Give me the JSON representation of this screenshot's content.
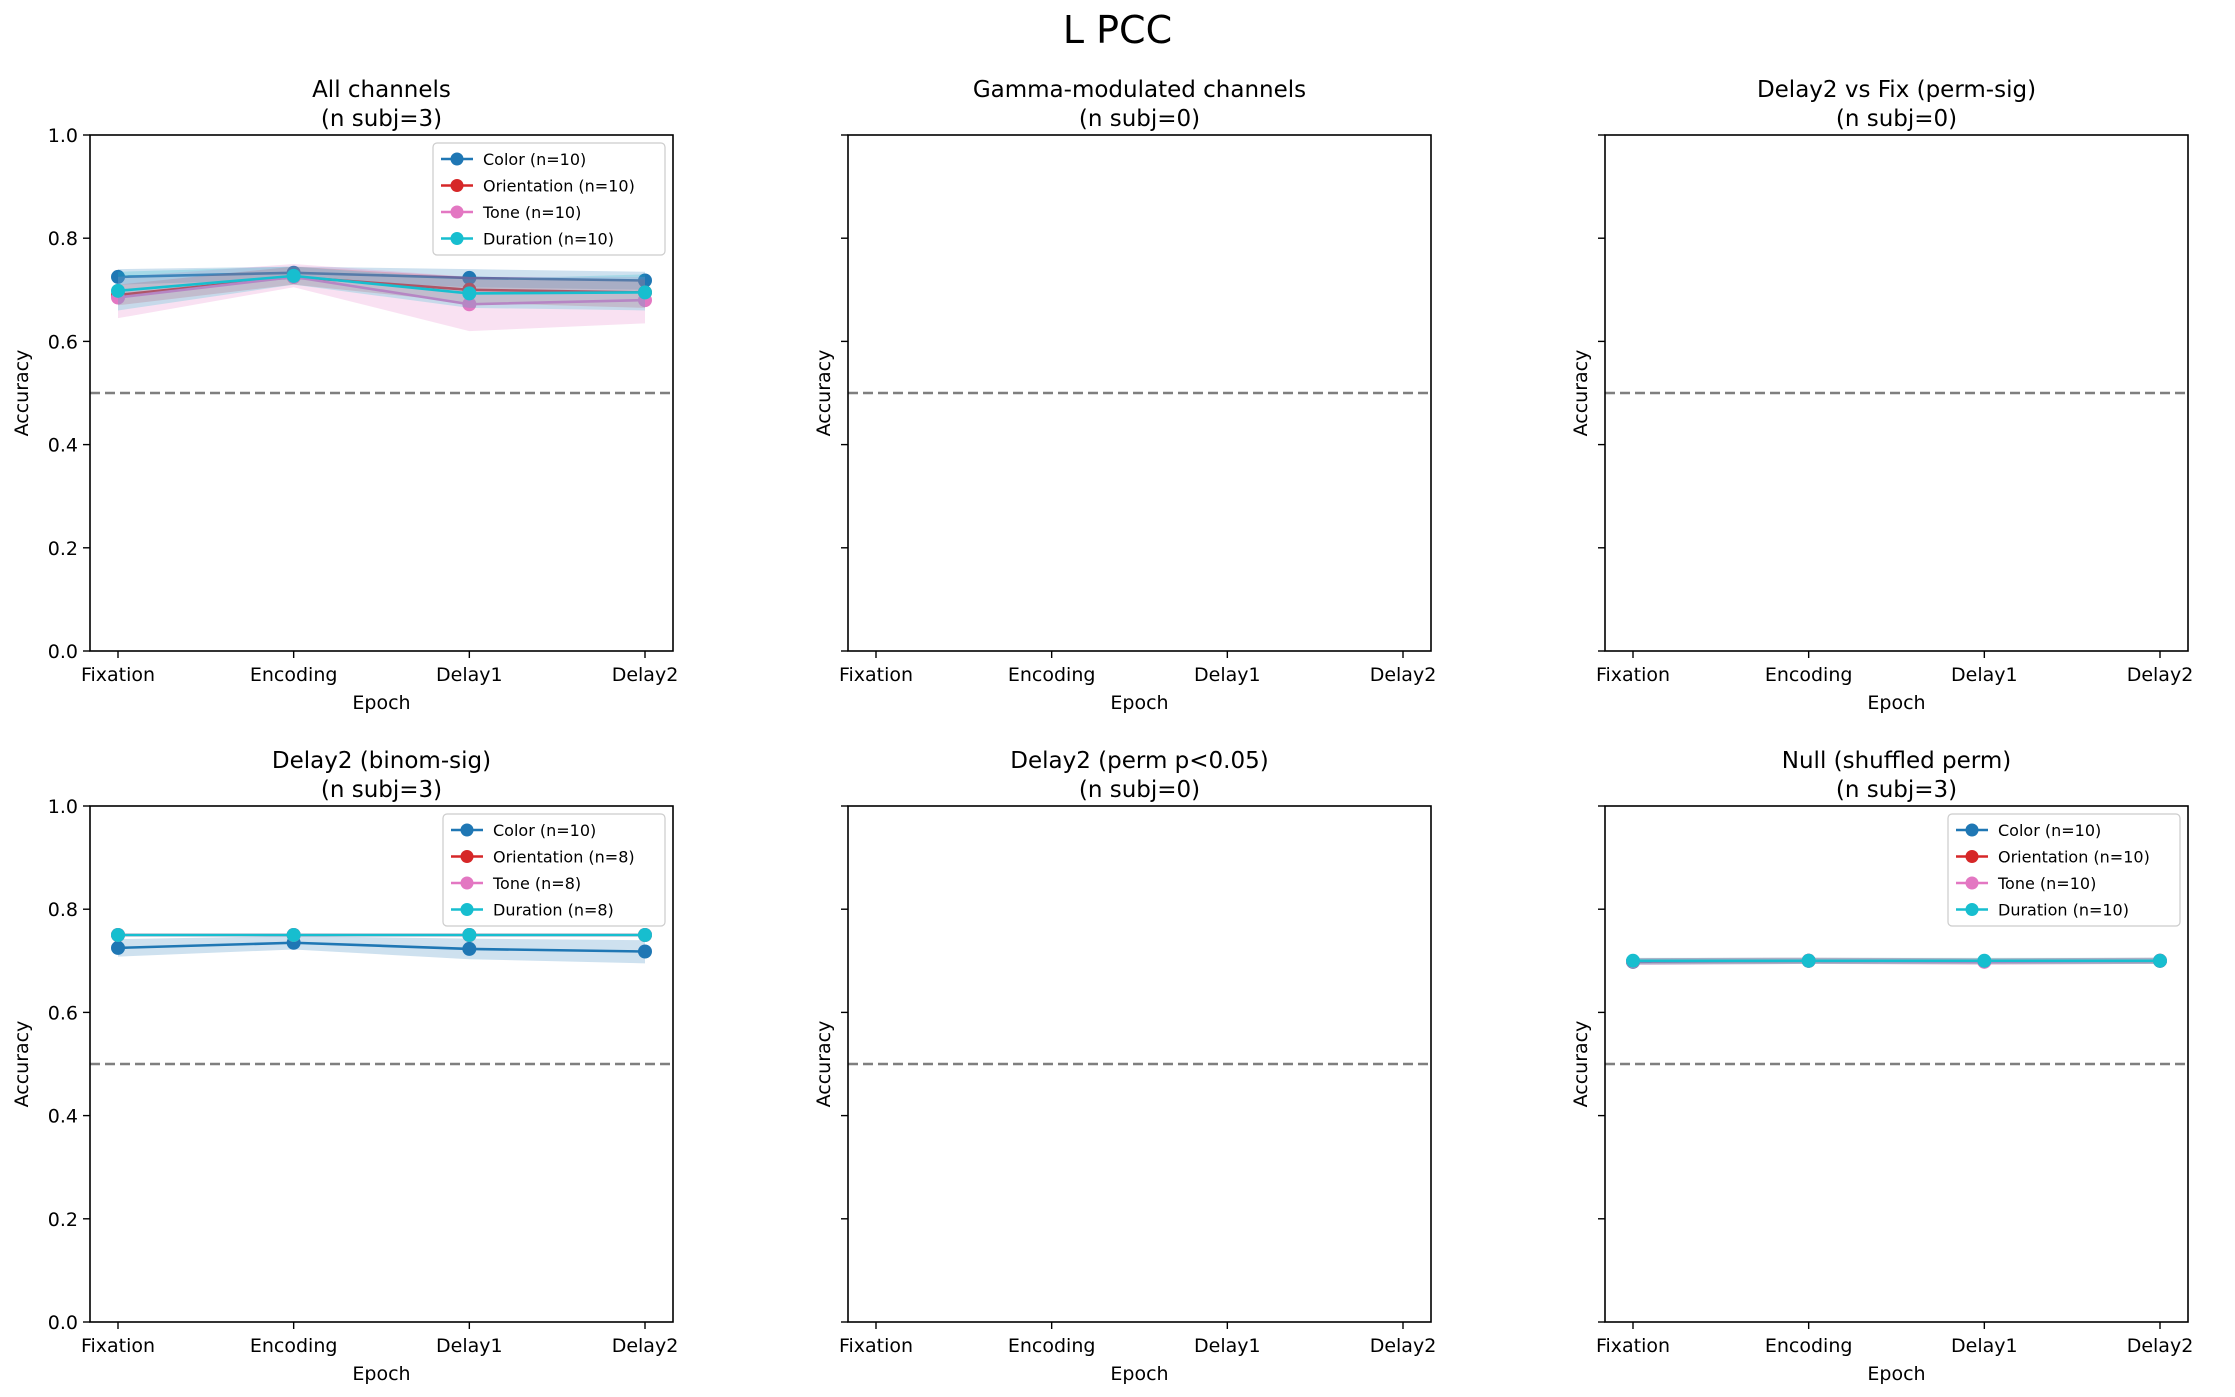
{
  "figure": {
    "suptitle": "L PCC"
  },
  "styles": {
    "colors": {
      "Color": "#1f77b4",
      "Orientation": "#d62728",
      "Tone": "#e377c2",
      "Duration": "#17becf"
    },
    "chance_line_color": "#7f7f7f"
  },
  "chart_data": [
    {
      "type": "line",
      "title": "All channels",
      "subtitle": "(n subj=3)",
      "xlabel": "Epoch",
      "ylabel": "Accuracy",
      "categories": [
        "Fixation",
        "Encoding",
        "Delay1",
        "Delay2"
      ],
      "ylim": [
        0,
        1
      ],
      "yticks": [
        "0.0",
        "0.2",
        "0.4",
        "0.6",
        "0.8",
        "1.0"
      ],
      "show_yticklabels": true,
      "chance_level": 0.5,
      "legend": "top-right",
      "series": [
        {
          "name": "Color (n=10)",
          "key": "Color",
          "values": [
            0.725,
            0.733,
            0.723,
            0.718
          ],
          "band": [
            [
              0.71,
              0.74
            ],
            [
              0.72,
              0.745
            ],
            [
              0.705,
              0.74
            ],
            [
              0.7,
              0.735
            ]
          ]
        },
        {
          "name": "Orientation (n=10)",
          "key": "Orientation",
          "values": [
            0.69,
            0.725,
            0.7,
            0.695
          ],
          "band": [
            [
              0.67,
              0.71
            ],
            [
              0.71,
              0.745
            ],
            [
              0.675,
              0.725
            ],
            [
              0.665,
              0.72
            ]
          ]
        },
        {
          "name": "Tone (n=10)",
          "key": "Tone",
          "values": [
            0.685,
            0.725,
            0.672,
            0.68
          ],
          "band": [
            [
              0.645,
              0.725
            ],
            [
              0.705,
              0.75
            ],
            [
              0.62,
              0.725
            ],
            [
              0.635,
              0.725
            ]
          ]
        },
        {
          "name": "Duration (n=10)",
          "key": "Duration",
          "values": [
            0.698,
            0.727,
            0.693,
            0.695
          ],
          "band": [
            [
              0.66,
              0.735
            ],
            [
              0.71,
              0.745
            ],
            [
              0.665,
              0.72
            ],
            [
              0.66,
              0.73
            ]
          ]
        }
      ]
    },
    {
      "type": "line",
      "title": "Gamma-modulated channels",
      "subtitle": "(n subj=0)",
      "xlabel": "Epoch",
      "ylabel": "Accuracy",
      "categories": [
        "Fixation",
        "Encoding",
        "Delay1",
        "Delay2"
      ],
      "ylim": [
        0,
        1
      ],
      "yticks": [
        "0.0",
        "0.2",
        "0.4",
        "0.6",
        "0.8",
        "1.0"
      ],
      "show_yticklabels": false,
      "chance_level": 0.5,
      "series": []
    },
    {
      "type": "line",
      "title": "Delay2 vs Fix (perm-sig)",
      "subtitle": "(n subj=0)",
      "xlabel": "Epoch",
      "ylabel": "Accuracy",
      "categories": [
        "Fixation",
        "Encoding",
        "Delay1",
        "Delay2"
      ],
      "ylim": [
        0,
        1
      ],
      "yticks": [
        "0.0",
        "0.2",
        "0.4",
        "0.6",
        "0.8",
        "1.0"
      ],
      "show_yticklabels": false,
      "chance_level": 0.5,
      "series": []
    },
    {
      "type": "line",
      "title": "Delay2 (binom-sig)",
      "subtitle": "(n subj=3)",
      "xlabel": "Epoch",
      "ylabel": "Accuracy",
      "categories": [
        "Fixation",
        "Encoding",
        "Delay1",
        "Delay2"
      ],
      "ylim": [
        0,
        1
      ],
      "yticks": [
        "0.0",
        "0.2",
        "0.4",
        "0.6",
        "0.8",
        "1.0"
      ],
      "show_yticklabels": true,
      "chance_level": 0.5,
      "legend": "top-right",
      "series": [
        {
          "name": "Color (n=10)",
          "key": "Color",
          "values": [
            0.725,
            0.735,
            0.723,
            0.718
          ],
          "band": [
            [
              0.708,
              0.742
            ],
            [
              0.722,
              0.748
            ],
            [
              0.703,
              0.743
            ],
            [
              0.695,
              0.74
            ]
          ]
        },
        {
          "name": "Orientation (n=8)",
          "key": "Orientation",
          "values": [
            0.75,
            0.75,
            0.75,
            0.75
          ],
          "band": null
        },
        {
          "name": "Tone (n=8)",
          "key": "Tone",
          "values": [
            0.75,
            0.75,
            0.75,
            0.75
          ],
          "band": null
        },
        {
          "name": "Duration (n=8)",
          "key": "Duration",
          "values": [
            0.75,
            0.75,
            0.75,
            0.75
          ],
          "band": null
        }
      ]
    },
    {
      "type": "line",
      "title": "Delay2 (perm p<0.05)",
      "subtitle": "(n subj=0)",
      "xlabel": "Epoch",
      "ylabel": "Accuracy",
      "categories": [
        "Fixation",
        "Encoding",
        "Delay1",
        "Delay2"
      ],
      "ylim": [
        0,
        1
      ],
      "yticks": [
        "0.0",
        "0.2",
        "0.4",
        "0.6",
        "0.8",
        "1.0"
      ],
      "show_yticklabels": false,
      "chance_level": 0.5,
      "series": []
    },
    {
      "type": "line",
      "title": "Null (shuffled perm)",
      "subtitle": "(n subj=3)",
      "xlabel": "Epoch",
      "ylabel": "Accuracy",
      "categories": [
        "Fixation",
        "Encoding",
        "Delay1",
        "Delay2"
      ],
      "ylim": [
        0,
        1
      ],
      "yticks": [
        "0.0",
        "0.2",
        "0.4",
        "0.6",
        "0.8",
        "1.0"
      ],
      "show_yticklabels": false,
      "chance_level": 0.5,
      "legend": "top-right",
      "series": [
        {
          "name": "Color (n=10)",
          "key": "Color",
          "values": [
            0.698,
            0.7,
            0.699,
            0.7
          ],
          "band": [
            [
              0.692,
              0.705
            ],
            [
              0.694,
              0.706
            ],
            [
              0.693,
              0.705
            ],
            [
              0.694,
              0.706
            ]
          ]
        },
        {
          "name": "Orientation (n=10)",
          "key": "Orientation",
          "values": [
            0.699,
            0.7,
            0.699,
            0.7
          ],
          "band": [
            [
              0.693,
              0.705
            ],
            [
              0.694,
              0.706
            ],
            [
              0.693,
              0.705
            ],
            [
              0.694,
              0.706
            ]
          ]
        },
        {
          "name": "Tone (n=10)",
          "key": "Tone",
          "values": [
            0.699,
            0.7,
            0.698,
            0.7
          ],
          "band": [
            [
              0.692,
              0.705
            ],
            [
              0.694,
              0.706
            ],
            [
              0.692,
              0.704
            ],
            [
              0.694,
              0.706
            ]
          ]
        },
        {
          "name": "Duration (n=10)",
          "key": "Duration",
          "values": [
            0.7,
            0.7,
            0.7,
            0.7
          ],
          "band": [
            [
              0.694,
              0.706
            ],
            [
              0.694,
              0.706
            ],
            [
              0.694,
              0.706
            ],
            [
              0.694,
              0.706
            ]
          ]
        }
      ]
    }
  ]
}
